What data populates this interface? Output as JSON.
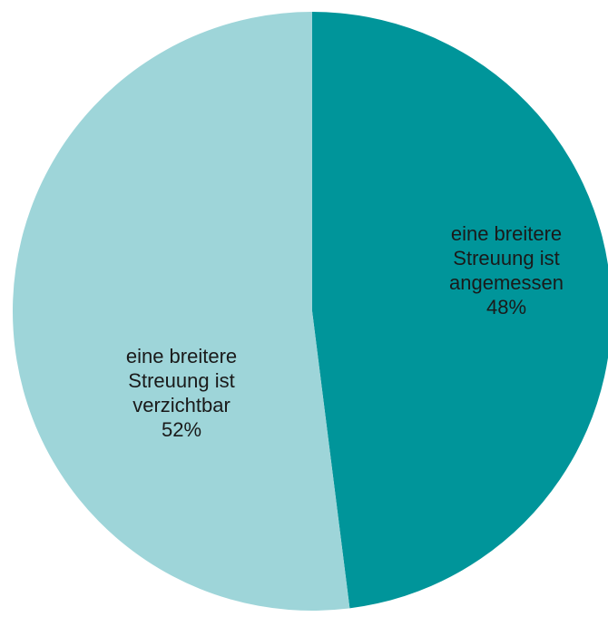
{
  "chart_data": {
    "type": "pie",
    "title": "",
    "slices": [
      {
        "label_lines": [
          "eine breitere",
          "Streuung ist",
          "angemessen"
        ],
        "value": 48,
        "value_label": "48%",
        "color": "#00959A"
      },
      {
        "label_lines": [
          "eine breitere",
          "Streuung ist",
          "verzichtbar"
        ],
        "value": 52,
        "value_label": "52%",
        "color": "#9ED5D9"
      }
    ],
    "start_angle_deg": 0,
    "direction": "clockwise",
    "legend": "none",
    "labels": "inside"
  }
}
